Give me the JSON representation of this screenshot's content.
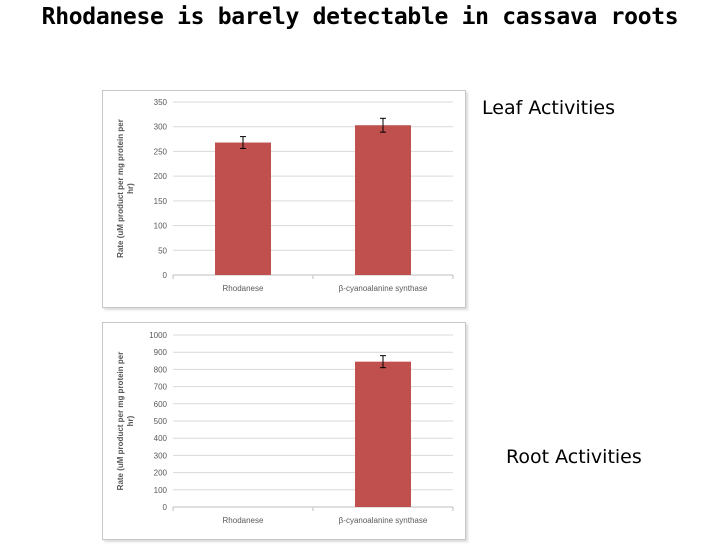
{
  "slide": {
    "title": "Rhodanese is barely detectable in cassava roots",
    "leaf_label": "Leaf Activities",
    "root_label": "Root Activities"
  },
  "colors": {
    "bar": "#c0504d",
    "grid": "#d9d9d9",
    "axis_text": "#595959"
  },
  "chart_data": [
    {
      "type": "bar",
      "name": "leaf",
      "categories": [
        "Rhodanese",
        "β-cyanoalanine synthase"
      ],
      "values": [
        268,
        303
      ],
      "errors": [
        12,
        14
      ],
      "ylim": [
        0,
        350
      ],
      "yticks": [
        0,
        50,
        100,
        150,
        200,
        250,
        300,
        350
      ],
      "ylabel": "Rate (uM product per mg protein per hr)",
      "grid": true
    },
    {
      "type": "bar",
      "name": "root",
      "categories": [
        "Rhodanese",
        "β-cyanoalanine synthase"
      ],
      "values": [
        0,
        845
      ],
      "errors": [
        0,
        35
      ],
      "ylim": [
        0,
        1000
      ],
      "yticks": [
        0,
        100,
        200,
        300,
        400,
        500,
        600,
        700,
        800,
        900,
        1000
      ],
      "ylabel": "Rate (uM product per mg protein per hr)",
      "grid": true
    }
  ]
}
